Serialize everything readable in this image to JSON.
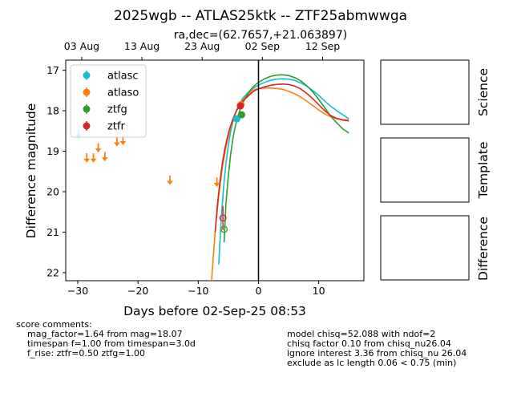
{
  "figure": {
    "title": "2025wgb -- ATLAS25ktk -- ZTF25abmwwga",
    "subtitle": "ra,dec=(62.7657,+21.063897)",
    "panel_labels": [
      "Science",
      "Template",
      "Difference"
    ]
  },
  "chart_data": {
    "type": "scatter",
    "xlabel": "Days before 02-Sep-25 08:53",
    "ylabel": "Difference magnitude",
    "xlim": [
      -32,
      17.5
    ],
    "ylim": [
      22.2,
      16.75
    ],
    "y_inverted": true,
    "x_ticks": [
      -30,
      -20,
      -10,
      0,
      10
    ],
    "y_ticks": [
      17,
      18,
      19,
      20,
      21,
      22
    ],
    "top_axis_ticks": [
      {
        "x": -29.35,
        "label": "03 Aug"
      },
      {
        "x": -19.35,
        "label": "13 Aug"
      },
      {
        "x": -9.35,
        "label": "23 Aug"
      },
      {
        "x": 0.65,
        "label": "02 Sep"
      },
      {
        "x": 10.65,
        "label": "12 Sep"
      }
    ],
    "reference_line_x": 0,
    "legend": {
      "placement": "upper-left",
      "entries": [
        "atlasc",
        "atlaso",
        "ztfg",
        "ztfr"
      ]
    },
    "colors": {
      "atlasc": "#17becf",
      "atlaso": "#ff7f0e",
      "ztfg": "#2ca02c",
      "ztfr": "#d62728"
    },
    "series": [
      {
        "name": "atlasc",
        "detections": [
          {
            "x": -3.6,
            "y": 18.2,
            "err": 0.05
          }
        ],
        "upper_limits": [
          {
            "x": -29.9,
            "y": 18.55
          }
        ]
      },
      {
        "name": "atlaso",
        "detections": [
          {
            "x": -2.9,
            "y": 17.85,
            "err": 0.05
          }
        ],
        "upper_limits": [
          {
            "x": -28.5,
            "y": 19.15
          },
          {
            "x": -27.4,
            "y": 19.15
          },
          {
            "x": -26.6,
            "y": 18.9
          },
          {
            "x": -25.5,
            "y": 19.12
          },
          {
            "x": -23.5,
            "y": 18.75
          },
          {
            "x": -22.5,
            "y": 18.72
          },
          {
            "x": -14.7,
            "y": 19.7
          },
          {
            "x": -6.9,
            "y": 19.75
          }
        ]
      },
      {
        "name": "ztfg",
        "detections": [
          {
            "x": -2.8,
            "y": 18.1,
            "err": 0.05
          }
        ],
        "open_points": [
          {
            "x": -5.7,
            "y": 20.93
          }
        ]
      },
      {
        "name": "ztfr",
        "detections": [
          {
            "x": -3.0,
            "y": 17.88,
            "err": 0.05
          }
        ],
        "open_points": [
          {
            "x": -5.9,
            "y": 20.65,
            "err_up": 0.3,
            "err_down": 0.3
          }
        ]
      }
    ],
    "model_curves": [
      {
        "name": "atlasc",
        "x": [
          -6.6,
          -6.2,
          -5.8,
          -5.4,
          -5.0,
          -4.6,
          -4.2,
          -3.8,
          -3.4,
          -3.0,
          -2.5,
          -2.0,
          -1.5,
          -1.0,
          -0.5,
          0,
          1,
          2,
          3,
          4,
          5,
          6,
          7,
          8,
          9,
          10,
          11,
          12,
          13,
          14,
          15
        ],
        "y": [
          21.8,
          20.7,
          19.9,
          19.3,
          18.85,
          18.5,
          18.25,
          18.05,
          17.9,
          17.78,
          17.67,
          17.59,
          17.52,
          17.46,
          17.41,
          17.37,
          17.3,
          17.25,
          17.22,
          17.21,
          17.22,
          17.25,
          17.31,
          17.39,
          17.5,
          17.62,
          17.76,
          17.89,
          18.0,
          18.1,
          18.2
        ]
      },
      {
        "name": "atlaso",
        "x": [
          -7.8,
          -7.2,
          -6.6,
          -6.0,
          -5.4,
          -4.8,
          -4.2,
          -3.6,
          -3.0,
          -2.5,
          -2.0,
          -1.5,
          -1.0,
          -0.5,
          0,
          1,
          2,
          3,
          4,
          5,
          6,
          7,
          8,
          9,
          10,
          11,
          12,
          13,
          14,
          15
        ],
        "y": [
          22.2,
          21.0,
          20.1,
          19.4,
          18.9,
          18.5,
          18.2,
          17.98,
          17.82,
          17.72,
          17.63,
          17.56,
          17.5,
          17.47,
          17.45,
          17.44,
          17.44,
          17.45,
          17.47,
          17.52,
          17.58,
          17.66,
          17.76,
          17.87,
          17.98,
          18.08,
          18.15,
          18.2,
          18.22,
          18.23
        ]
      },
      {
        "name": "ztfg",
        "x": [
          -5.7,
          -5.4,
          -5.0,
          -4.6,
          -4.2,
          -3.8,
          -3.4,
          -3.0,
          -2.5,
          -2.0,
          -1.5,
          -1.0,
          -0.5,
          0,
          1,
          2,
          3,
          4,
          5,
          6,
          7,
          8,
          9,
          10,
          11,
          12,
          13,
          14,
          15
        ],
        "y": [
          21.25,
          20.3,
          19.6,
          19.05,
          18.65,
          18.35,
          18.13,
          17.95,
          17.78,
          17.64,
          17.52,
          17.43,
          17.36,
          17.3,
          17.21,
          17.15,
          17.12,
          17.11,
          17.13,
          17.18,
          17.26,
          17.38,
          17.53,
          17.72,
          17.93,
          18.14,
          18.3,
          18.45,
          18.55
        ]
      },
      {
        "name": "ztfr",
        "x": [
          -7.2,
          -6.8,
          -6.4,
          -6.0,
          -5.6,
          -5.2,
          -4.8,
          -4.4,
          -4.0,
          -3.6,
          -3.2,
          -2.8,
          -2.3,
          -1.8,
          -1.3,
          -0.8,
          -0.3,
          0,
          1,
          2,
          3,
          4,
          5,
          6,
          7,
          8,
          9,
          10,
          11,
          12,
          13,
          14,
          15
        ],
        "y": [
          21.0,
          20.3,
          19.75,
          19.3,
          18.95,
          18.68,
          18.45,
          18.27,
          18.12,
          17.99,
          17.89,
          17.8,
          17.72,
          17.65,
          17.58,
          17.52,
          17.48,
          17.46,
          17.41,
          17.37,
          17.35,
          17.34,
          17.35,
          17.39,
          17.46,
          17.57,
          17.7,
          17.85,
          18.0,
          18.12,
          18.19,
          18.23,
          18.25
        ]
      }
    ]
  },
  "score_comments": {
    "heading": "score comments:",
    "lines": [
      "mag_factor=1.64 from mag=18.07",
      "timespan f=1.00 from timespan=3.0d",
      "f_rise: ztfr=0.50 ztfg=1.00"
    ]
  },
  "model_comments": {
    "lines": [
      "model chisq=52.088 with ndof=2",
      "chisq factor 0.10 from chisq_nu26.04",
      "ignore interest 3.36 from chisq_nu 26.04",
      "exclude as lc length 0.06 < 0.75 (min)"
    ]
  }
}
